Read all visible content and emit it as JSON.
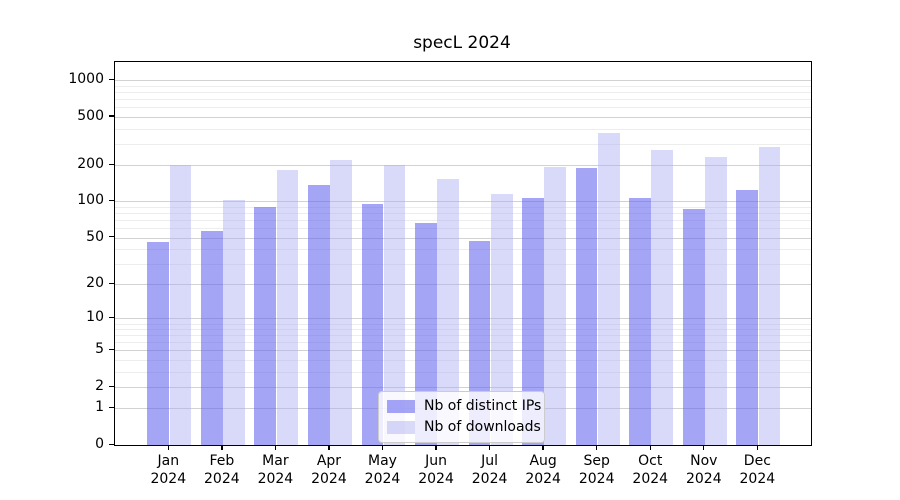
{
  "chart_data": {
    "type": "bar",
    "title": "specL 2024",
    "categories": [
      "Jan",
      "Feb",
      "Mar",
      "Apr",
      "May",
      "Jun",
      "Jul",
      "Aug",
      "Sep",
      "Oct",
      "Nov",
      "Dec"
    ],
    "year_label": "2024",
    "series": [
      {
        "name": "Nb of distinct IPs",
        "color": "rgba(100,100,240,0.58)",
        "values": [
          46,
          57,
          90,
          137,
          95,
          66,
          47,
          107,
          190,
          106,
          86,
          125
        ]
      },
      {
        "name": "Nb of downloads",
        "color": "rgba(170,170,242,0.45)",
        "values": [
          200,
          103,
          182,
          220,
          200,
          154,
          115,
          193,
          370,
          265,
          233,
          285
        ]
      }
    ],
    "yscale": "log1p",
    "yticks": [
      0,
      1,
      2,
      5,
      10,
      20,
      50,
      100,
      200,
      500,
      1000
    ],
    "yticks_minor": [
      3,
      4,
      6,
      7,
      8,
      9,
      30,
      40,
      60,
      70,
      80,
      90,
      300,
      400,
      600,
      700,
      800,
      900
    ],
    "ylim": [
      0,
      1430
    ],
    "xlabel": "",
    "ylabel": "",
    "grid": true,
    "legend_position": "lower-center",
    "colors": {
      "distinct_ips": "rgba(100,100,240,0.58)",
      "downloads": "rgba(170,170,242,0.45)",
      "grid_major": "#d2d2d2",
      "grid_minor": "#ededed",
      "axis": "#000000",
      "legend_border": "#cccccc"
    }
  }
}
